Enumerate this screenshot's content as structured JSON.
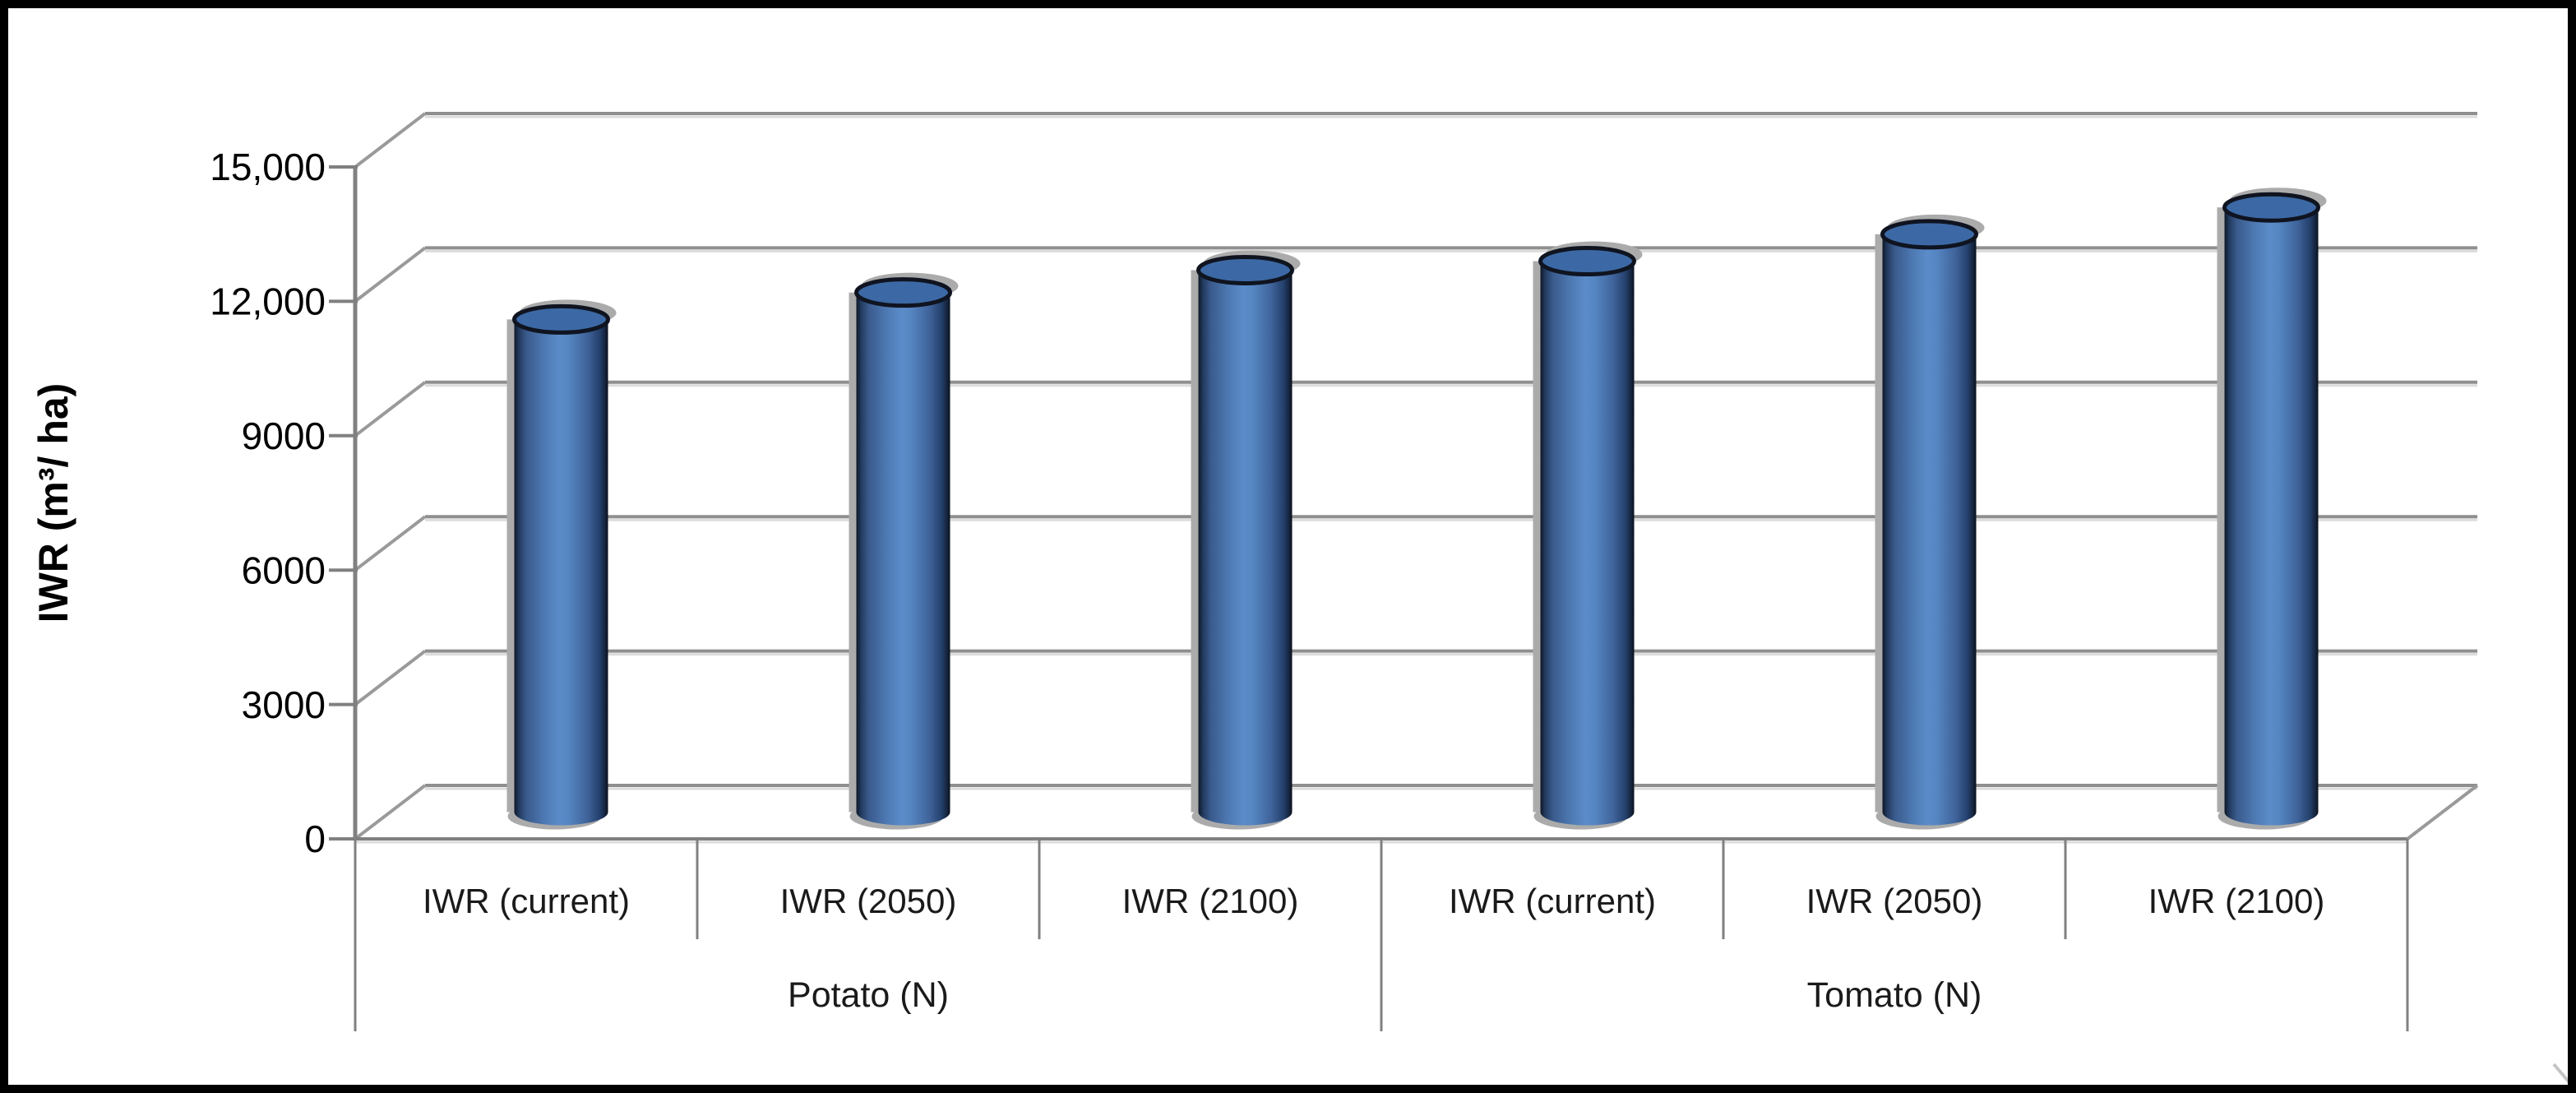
{
  "chart_data": {
    "type": "bar",
    "style": "3d-cylinder",
    "title": "",
    "xlabel": "",
    "ylabel": "IWR (m³/ ha)",
    "ylim": [
      0,
      15000
    ],
    "ytick_interval": 3000,
    "ytick_labels": [
      "0",
      "3000",
      "6000",
      "9000",
      "12,000",
      "15,000"
    ],
    "grid": true,
    "legend": "none",
    "categories": [
      "IWR (current)",
      "IWR (2050)",
      "IWR (2100)",
      "IWR (current)",
      "IWR (2050)",
      "IWR (2100)"
    ],
    "groups": [
      {
        "label": "Potato (N)",
        "categories": [
          "IWR (current)",
          "IWR (2050)",
          "IWR (2100)"
        ],
        "values": [
          11000,
          11600,
          12100
        ]
      },
      {
        "label": "Tomato (N)",
        "categories": [
          "IWR (current)",
          "IWR (2050)",
          "IWR (2100)"
        ],
        "values": [
          12300,
          12900,
          13500
        ]
      }
    ],
    "series": [
      {
        "name": "IWR",
        "values": [
          11000,
          11600,
          12100,
          12300,
          12900,
          13500
        ]
      }
    ]
  },
  "colors": {
    "bar_fill": "#4F81BD",
    "bar_top": "#3C69A5",
    "bar_outline": "#0F1420",
    "gridline": "#8F8F8F",
    "gridline_light": "#DCDCDC",
    "axis_line": "#808080",
    "shadow": "#ABABAB",
    "text": "#000000",
    "frame_border": "#000000"
  }
}
